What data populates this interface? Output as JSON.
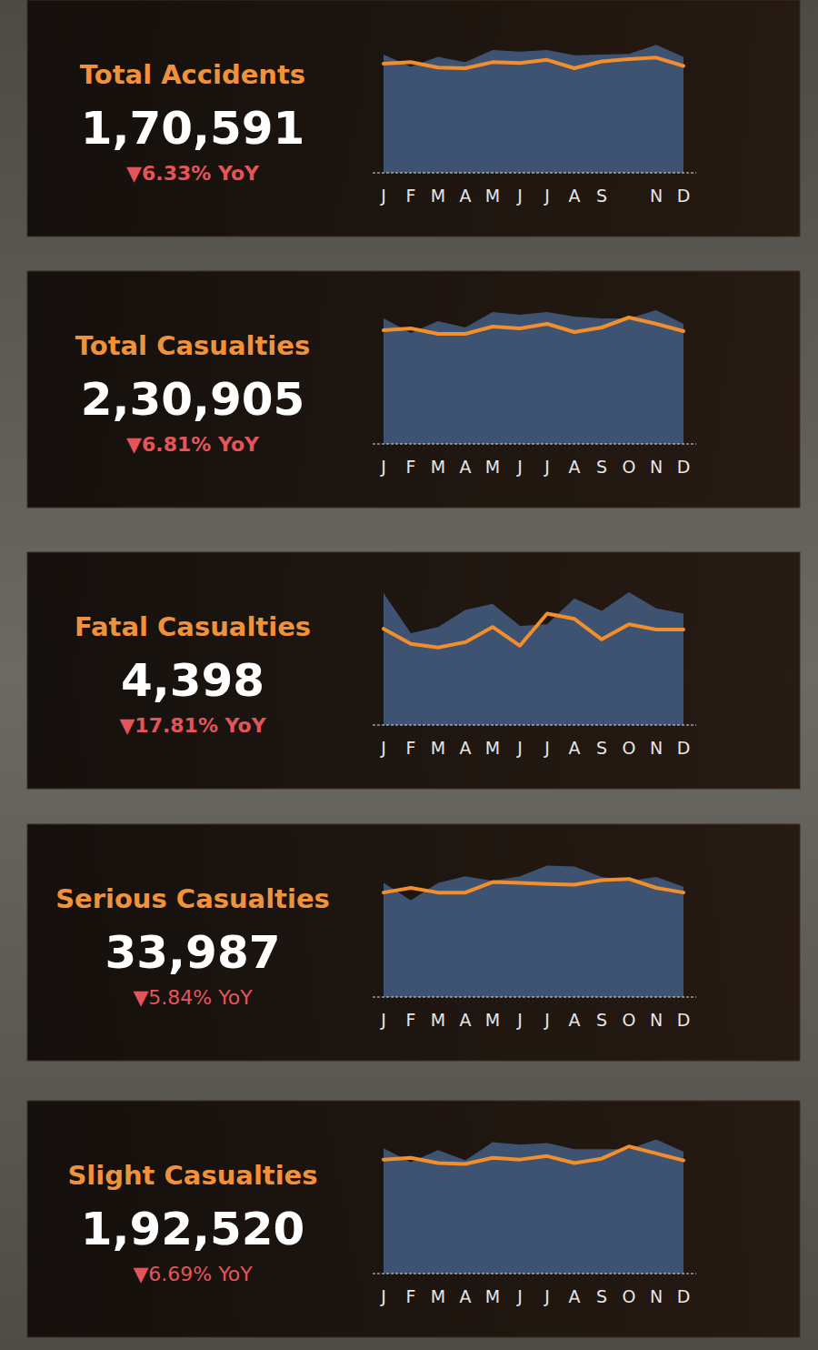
{
  "chart_data": [
    {
      "type": "area",
      "title": "Total Accidents",
      "kpi": {
        "value": 170591,
        "label": "1,70,591"
      },
      "change": {
        "value": -6.33,
        "label": "▼6.33% YoY"
      },
      "categories": [
        "J",
        "F",
        "M",
        "A",
        "M",
        "J",
        "J",
        "A",
        "S",
        null,
        "N",
        "D"
      ],
      "series": [
        {
          "type": "area",
          "color": "#3e5371",
          "values": [
            15600,
            14000,
            15300,
            14600,
            16200,
            16000,
            16200,
            15500,
            15600,
            15700,
            16900,
            15300
          ]
        },
        {
          "type": "line",
          "color": "#f28e2b",
          "values": [
            14400,
            14600,
            13900,
            13800,
            14600,
            14500,
            14900,
            13800,
            14700,
            15000,
            15200,
            14100
          ]
        }
      ],
      "ylim": [
        0,
        18000
      ],
      "tick_labels": "x"
    },
    {
      "type": "area",
      "title": "Total Casualties",
      "kpi": {
        "value": 230905,
        "label": "2,30,905"
      },
      "change": {
        "value": -6.81,
        "label": "▼6.81% YoY"
      },
      "categories": [
        "J",
        "F",
        "M",
        "A",
        "M",
        "J",
        "J",
        "A",
        "S",
        "O",
        "N",
        "D"
      ],
      "series": [
        {
          "type": "area",
          "color": "#3e5371",
          "values": [
            20700,
            18300,
            20250,
            19200,
            21750,
            21300,
            21750,
            21000,
            20700,
            20700,
            22050,
            19800
          ]
        },
        {
          "type": "line",
          "color": "#f28e2b",
          "values": [
            18750,
            19050,
            18150,
            18150,
            19350,
            19050,
            19800,
            18450,
            19200,
            20850,
            19800,
            18600
          ]
        }
      ],
      "ylim": [
        0,
        22500
      ],
      "tick_labels": "x"
    },
    {
      "type": "area",
      "title": "Fatal Casualties",
      "kpi": {
        "value": 4398,
        "label": "4,398"
      },
      "change": {
        "value": -17.81,
        "label": "▼17.81% YoY"
      },
      "categories": [
        "J",
        "F",
        "M",
        "A",
        "M",
        "J",
        "J",
        "A",
        "S",
        "O",
        "N",
        "D"
      ],
      "series": [
        {
          "type": "area",
          "color": "#3e5371",
          "values": [
            522,
            364,
            388,
            455,
            480,
            392,
            399,
            501,
            452,
            526,
            462,
            441
          ]
        },
        {
          "type": "line",
          "color": "#f28e2b",
          "values": [
            381,
            321,
            307,
            328,
            388,
            314,
            441,
            420,
            339,
            399,
            378,
            378
          ]
        }
      ],
      "ylim": [
        0,
        540
      ],
      "tick_labels": "x"
    },
    {
      "type": "area",
      "title": "Serious Casualties",
      "kpi": {
        "value": 33987,
        "label": "33,987"
      },
      "change": {
        "value": -5.84,
        "label": "▼5.84% YoY"
      },
      "categories": [
        "J",
        "F",
        "M",
        "A",
        "M",
        "J",
        "J",
        "A",
        "S",
        "O",
        "N",
        "D"
      ],
      "series": [
        {
          "type": "area",
          "color": "#3e5371",
          "values": [
            2930,
            2480,
            2930,
            3100,
            2980,
            3100,
            3370,
            3350,
            3080,
            2980,
            3080,
            2830
          ]
        },
        {
          "type": "line",
          "color": "#f28e2b",
          "values": [
            2680,
            2800,
            2680,
            2680,
            2950,
            2930,
            2900,
            2880,
            3000,
            3030,
            2800,
            2680
          ]
        }
      ],
      "ylim": [
        0,
        3500
      ],
      "tick_labels": "x"
    },
    {
      "type": "area",
      "title": "Slight Casualties",
      "kpi": {
        "value": 192520,
        "label": "1,92,520"
      },
      "change": {
        "value": -6.69,
        "label": "▼6.69% YoY"
      },
      "categories": [
        "J",
        "F",
        "M",
        "A",
        "M",
        "J",
        "J",
        "A",
        "S",
        "O",
        "N",
        "D"
      ],
      "series": [
        {
          "type": "area",
          "color": "#3e5371",
          "values": [
            17450,
            15510,
            17210,
            15760,
            18300,
            17940,
            18180,
            17330,
            17330,
            17330,
            18670,
            16970
          ]
        },
        {
          "type": "line",
          "color": "#f28e2b",
          "values": [
            15880,
            16120,
            15390,
            15270,
            16120,
            15880,
            16360,
            15390,
            16000,
            17700,
            16730,
            15760
          ]
        }
      ],
      "ylim": [
        0,
        19000
      ],
      "tick_labels": "x"
    }
  ]
}
